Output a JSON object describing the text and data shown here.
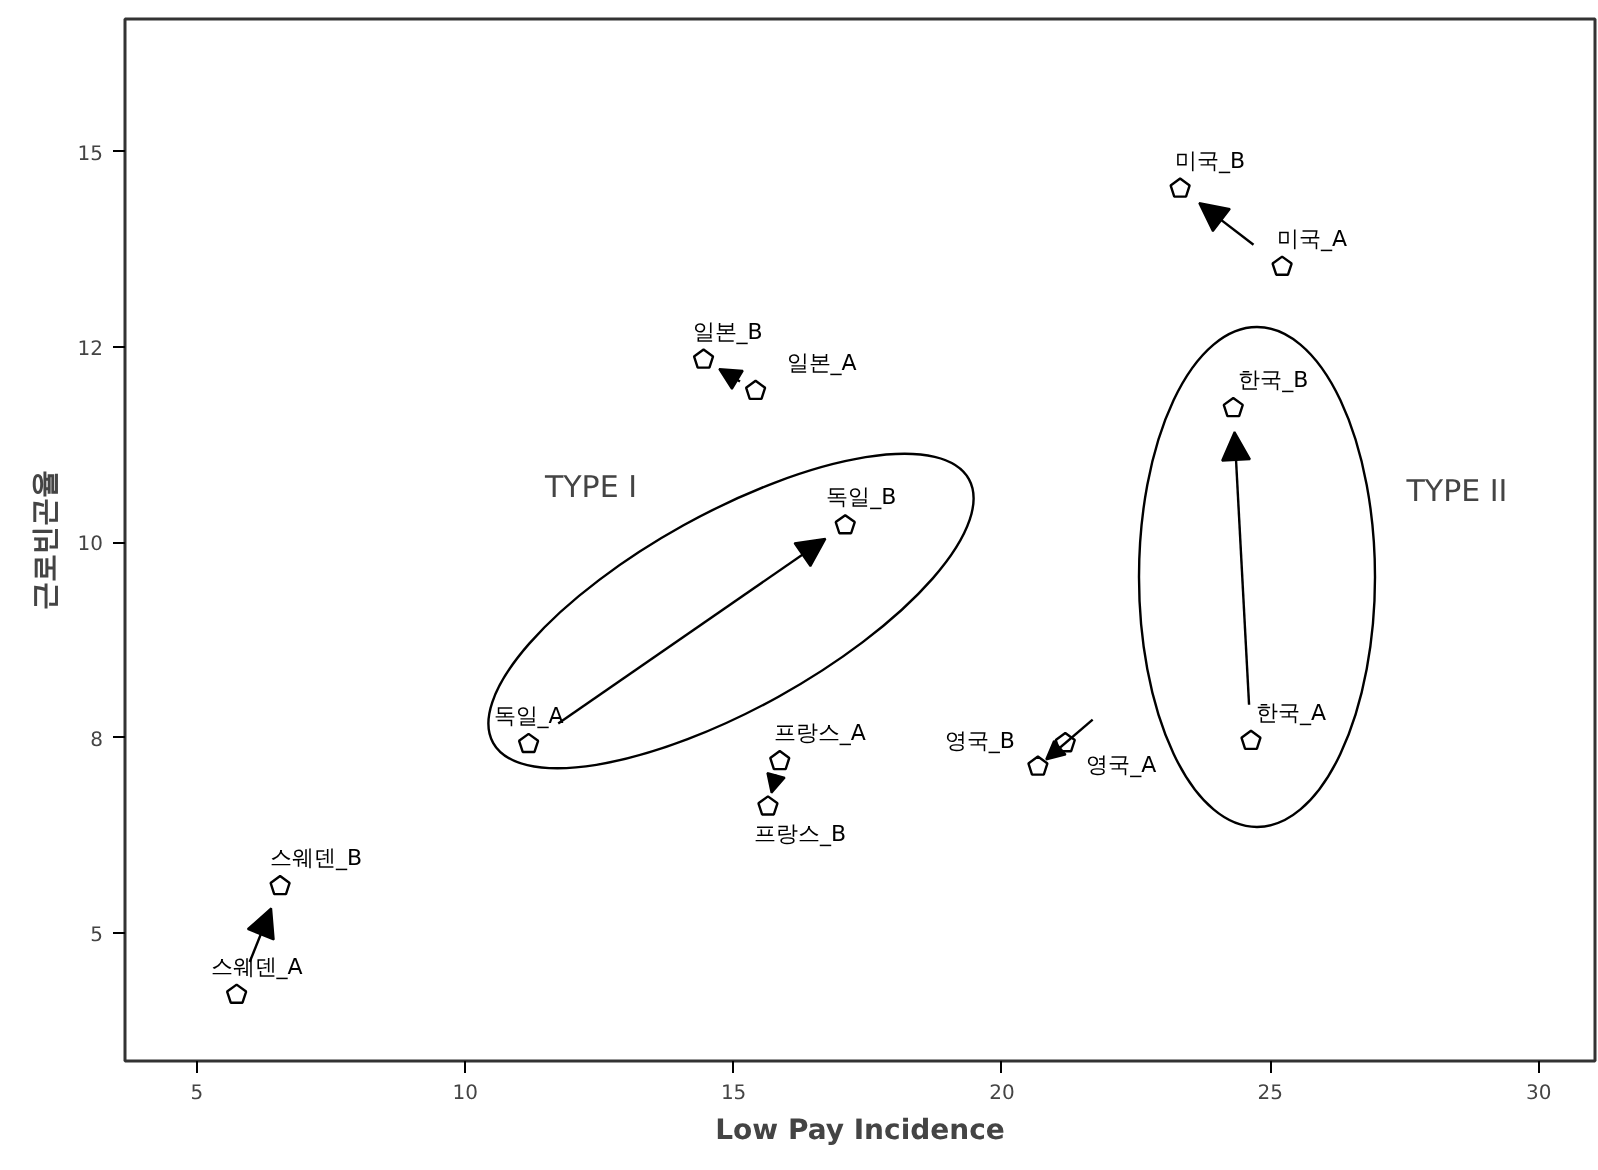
{
  "chart_data": {
    "type": "scatter",
    "xlabel": "Low Pay Incidence",
    "ylabel": "근로빈곤율",
    "x": [
      5.74,
      6.55,
      11.18,
      17.08,
      15.41,
      14.44,
      15.86,
      15.64,
      21.18,
      20.67,
      24.64,
      24.31,
      25.22,
      23.32
    ],
    "values": [
      4.21,
      5.6,
      7.42,
      10.22,
      11.94,
      12.34,
      7.2,
      6.62,
      7.43,
      7.13,
      7.46,
      11.72,
      13.53,
      14.53
    ],
    "value_labels": [
      "스웨덴_A",
      "스웨덴_B",
      "독일_A",
      "독일_B",
      "일본_A",
      "일본_B",
      "프랑스_A",
      "프랑스_B",
      "영국_A",
      "영국_B",
      "한국_A",
      "한국_B",
      "미국_A",
      "미국_B"
    ],
    "color": "#000000",
    "xlim": [
      3.66,
      31.05
    ],
    "ylim": [
      3.36,
      16.7
    ],
    "xticks": [
      5,
      10,
      15,
      20,
      25,
      30
    ],
    "yticks": [
      5,
      {
        "value": 7.5,
        "label": "8"
      },
      10,
      {
        "value": 12.5,
        "label": "12"
      },
      15
    ],
    "annotations": [
      "TYPE I",
      "TYPE II"
    ],
    "grid": false
  }
}
